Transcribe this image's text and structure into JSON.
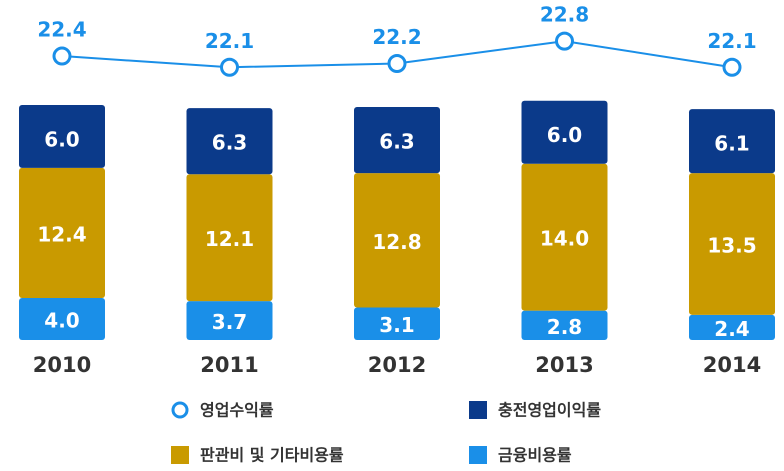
{
  "chart_data": {
    "type": "bar",
    "categories": [
      "2010",
      "2011",
      "2012",
      "2013",
      "2014"
    ],
    "stacked": true,
    "ylim": [
      0,
      32.4
    ],
    "y2lim": [
      14.8,
      23.9
    ],
    "series": [
      {
        "name": "금융비용률",
        "color": "#1a8fe8",
        "values": [
          4.0,
          3.7,
          3.1,
          2.8,
          2.4
        ],
        "value_labels": [
          "4.0",
          "3.7",
          "3.1",
          "2.8",
          "2.4"
        ]
      },
      {
        "name": "판관비 및 기타비용률",
        "color": "#c99a00",
        "values": [
          12.4,
          12.1,
          12.8,
          14.0,
          13.5
        ],
        "value_labels": [
          "12.4",
          "12.1",
          "12.8",
          "14.0",
          "13.5"
        ]
      },
      {
        "name": "충전영업이익률",
        "color": "#0b3a8a",
        "values": [
          6.0,
          6.3,
          6.3,
          6.0,
          6.1
        ],
        "value_labels": [
          "6.0",
          "6.3",
          "6.3",
          "6.0",
          "6.1"
        ]
      },
      {
        "name": "영업수익률",
        "type": "line",
        "axis": "y2",
        "color": "#1a8fe8",
        "values": [
          22.4,
          22.1,
          22.2,
          22.8,
          22.1
        ]
      }
    ]
  }
}
